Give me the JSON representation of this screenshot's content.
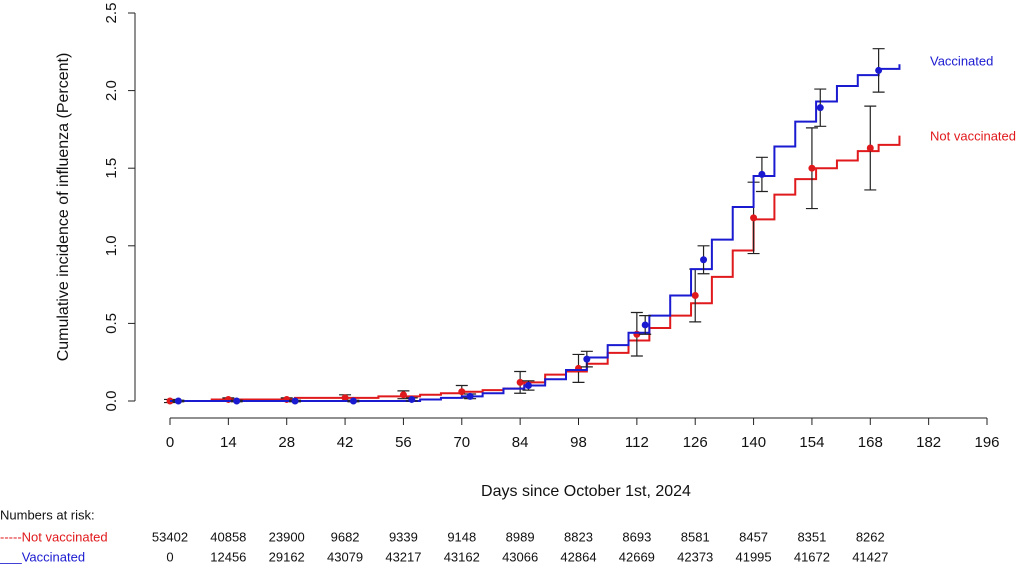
{
  "chart_data": {
    "type": "step",
    "ylabel": "Cumulative incidence of influenza (Percent)",
    "xlabel": "Days since October 1st, 2024",
    "xlim": [
      0,
      196
    ],
    "xticks": [
      0,
      14,
      28,
      42,
      56,
      70,
      84,
      98,
      112,
      126,
      140,
      154,
      168,
      182,
      196
    ],
    "ylim": [
      0,
      2.5
    ],
    "yticks": [
      {
        "value": 0,
        "label": "0.0"
      },
      0.5,
      {
        "value": 1,
        "label": "1.0"
      },
      1.5,
      {
        "value": 2,
        "label": "2.0"
      },
      2.5
    ],
    "series": [
      {
        "name": "Not vaccinated",
        "color": "#e0191c",
        "x": [
          0,
          10,
          20,
          30,
          40,
          50,
          60,
          65,
          70,
          75,
          80,
          85,
          90,
          95,
          100,
          105,
          110,
          115,
          120,
          125,
          130,
          135,
          140,
          145,
          150,
          155,
          160,
          165,
          170,
          175
        ],
        "values": [
          0,
          0.01,
          0.01,
          0.02,
          0.02,
          0.03,
          0.04,
          0.05,
          0.06,
          0.07,
          0.08,
          0.12,
          0.17,
          0.19,
          0.24,
          0.31,
          0.39,
          0.47,
          0.55,
          0.63,
          0.8,
          0.97,
          1.17,
          1.33,
          1.43,
          1.5,
          1.55,
          1.61,
          1.65,
          1.71
        ],
        "points": {
          "x": [
            0,
            14,
            28,
            42,
            56,
            70,
            84,
            98,
            112,
            126,
            140,
            154,
            168
          ],
          "values": [
            0,
            0.01,
            0.01,
            0.02,
            0.04,
            0.06,
            0.12,
            0.21,
            0.43,
            0.68,
            1.18,
            1.5,
            1.63
          ],
          "errors": [
            0.01,
            0.01,
            0.01,
            0.02,
            0.025,
            0.04,
            0.07,
            0.09,
            0.14,
            0.17,
            0.23,
            0.26,
            0.27
          ]
        }
      },
      {
        "name": "Vaccinated",
        "color": "#1a1ad0",
        "x": [
          0,
          10,
          20,
          30,
          40,
          50,
          60,
          65,
          70,
          75,
          80,
          85,
          90,
          95,
          100,
          105,
          110,
          115,
          120,
          125,
          130,
          135,
          140,
          145,
          150,
          155,
          160,
          165,
          170,
          175
        ],
        "values": [
          0,
          0,
          0,
          0,
          0,
          0,
          0.01,
          0.02,
          0.03,
          0.05,
          0.08,
          0.1,
          0.14,
          0.2,
          0.28,
          0.36,
          0.44,
          0.55,
          0.68,
          0.85,
          1.04,
          1.25,
          1.45,
          1.64,
          1.8,
          1.93,
          2.03,
          2.1,
          2.14,
          2.17
        ],
        "points": {
          "x": [
            2,
            16,
            30,
            44,
            58,
            72,
            86,
            100,
            114,
            128,
            142,
            156,
            170
          ],
          "values": [
            0,
            0,
            0,
            0,
            0.01,
            0.03,
            0.1,
            0.27,
            0.49,
            0.91,
            1.46,
            1.89,
            2.13
          ],
          "errors": [
            0.005,
            0.005,
            0.005,
            0.005,
            0.01,
            0.015,
            0.03,
            0.05,
            0.06,
            0.09,
            0.11,
            0.12,
            0.14
          ]
        }
      }
    ],
    "risk_table": {
      "title": "Numbers at risk:",
      "x": [
        0,
        14,
        28,
        42,
        56,
        70,
        84,
        98,
        112,
        126,
        140,
        154,
        168
      ],
      "rows": [
        {
          "label": "-----Not vaccinated",
          "values": [
            53402,
            40858,
            23900,
            9682,
            9339,
            9148,
            8989,
            8823,
            8693,
            8581,
            8457,
            8351,
            8262
          ]
        },
        {
          "label": "___Vaccinated",
          "values": [
            0,
            12456,
            29162,
            43079,
            43217,
            43162,
            43066,
            42864,
            42669,
            42373,
            41995,
            41672,
            41427
          ]
        }
      ]
    }
  }
}
